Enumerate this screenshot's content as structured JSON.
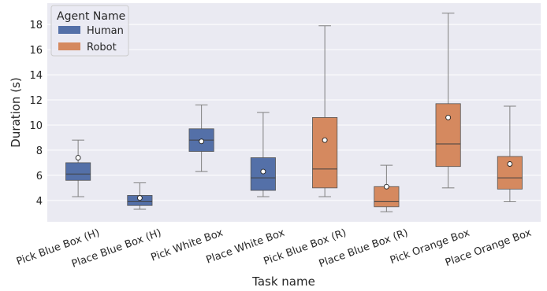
{
  "chart_data": {
    "type": "box",
    "xlabel": "Task name",
    "ylabel": "Duration (s)",
    "ylim": [
      2.3,
      19.7
    ],
    "yticks": [
      4,
      6,
      8,
      10,
      12,
      14,
      16,
      18
    ],
    "grid": true,
    "legend": {
      "title": "Agent Name",
      "placement": "top-left",
      "entries": [
        {
          "label": "Human",
          "color": "#5470a8"
        },
        {
          "label": "Robot",
          "color": "#d5895f"
        }
      ]
    },
    "colors": {
      "background": "#eaeaf2",
      "grid": "#ffffff",
      "whisker": "#808080",
      "median": "#404040",
      "mean_marker_fill": "#ffffff"
    },
    "categories": [
      {
        "label": "Pick Blue Box (H)",
        "agent": "Human",
        "min": 4.3,
        "q1": 5.6,
        "median": 6.1,
        "q3": 7.0,
        "max": 8.8,
        "mean": 7.4
      },
      {
        "label": "Place Blue Box (H)",
        "agent": "Human",
        "min": 3.3,
        "q1": 3.6,
        "median": 3.9,
        "q3": 4.4,
        "max": 5.4,
        "mean": 4.2
      },
      {
        "label": "Pick White Box",
        "agent": "Human",
        "min": 6.3,
        "q1": 7.9,
        "median": 8.8,
        "q3": 9.7,
        "max": 11.6,
        "mean": 8.7
      },
      {
        "label": "Place White Box",
        "agent": "Human",
        "min": 4.3,
        "q1": 4.8,
        "median": 5.8,
        "q3": 7.4,
        "max": 11.0,
        "mean": 6.3
      },
      {
        "label": "Pick Blue Box (R)",
        "agent": "Robot",
        "min": 4.3,
        "q1": 5.0,
        "median": 6.5,
        "q3": 10.6,
        "max": 17.9,
        "mean": 8.8
      },
      {
        "label": "Place Blue Box (R)",
        "agent": "Robot",
        "min": 3.1,
        "q1": 3.5,
        "median": 3.9,
        "q3": 5.1,
        "max": 6.8,
        "mean": 5.1
      },
      {
        "label": "Pick Orange Box",
        "agent": "Robot",
        "min": 5.0,
        "q1": 6.7,
        "median": 8.5,
        "q3": 11.7,
        "max": 18.9,
        "mean": 10.6
      },
      {
        "label": "Place Orange Box",
        "agent": "Robot",
        "min": 3.9,
        "q1": 4.9,
        "median": 5.8,
        "q3": 7.5,
        "max": 11.5,
        "mean": 6.9
      }
    ]
  }
}
